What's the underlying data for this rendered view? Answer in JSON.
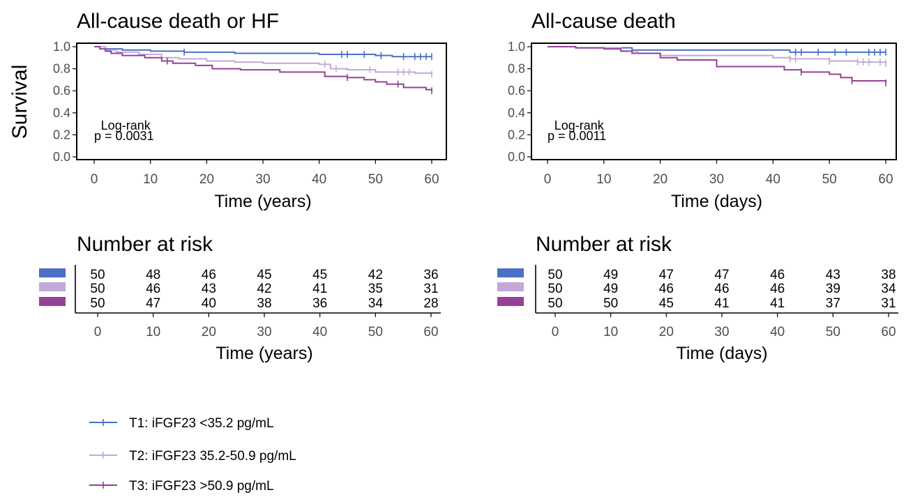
{
  "colors": {
    "t1": "#4a6fc4",
    "t2": "#c3a9d6",
    "t3": "#944197"
  },
  "shared": {
    "y_axis_label": "Survival",
    "y_ticks": [
      "0.0",
      "0.2",
      "0.4",
      "0.6",
      "0.8",
      "1.0"
    ],
    "x_ticks": [
      "0",
      "10",
      "20",
      "30",
      "40",
      "50",
      "60"
    ],
    "risk_title": "Number at risk"
  },
  "legend": {
    "items": [
      {
        "label": "T1: iFGF23 <35.2 pg/mL",
        "color": "#4a6fc4"
      },
      {
        "label": "T2: iFGF23 35.2-50.9 pg/mL",
        "color": "#c3a9d6"
      },
      {
        "label": "T3: iFGF23 >50.9 pg/mL",
        "color": "#944197"
      }
    ]
  },
  "chart_data": [
    {
      "type": "line",
      "title": "All-cause death or HF",
      "xlabel": "Time (years)",
      "ylabel": "Survival",
      "xlim": [
        0,
        60
      ],
      "ylim": [
        0,
        1
      ],
      "annotation": {
        "line1": "Log-rank",
        "line2": "p = 0.0031"
      },
      "series": [
        {
          "key": "t1",
          "x": [
            0,
            2,
            5,
            10,
            16,
            20,
            25,
            30,
            40,
            45,
            50,
            53,
            57,
            60
          ],
          "y": [
            1.0,
            0.98,
            0.97,
            0.96,
            0.95,
            0.95,
            0.94,
            0.94,
            0.93,
            0.93,
            0.92,
            0.91,
            0.91,
            0.91
          ],
          "censor_x": [
            16,
            44,
            45,
            48,
            51,
            55,
            57,
            58,
            59,
            60
          ]
        },
        {
          "key": "t2",
          "x": [
            0,
            2,
            4,
            8,
            12,
            15,
            20,
            25,
            30,
            35,
            40,
            42,
            45,
            50,
            53,
            57,
            60
          ],
          "y": [
            1.0,
            0.97,
            0.95,
            0.93,
            0.9,
            0.89,
            0.87,
            0.86,
            0.85,
            0.85,
            0.84,
            0.8,
            0.79,
            0.77,
            0.77,
            0.76,
            0.75
          ],
          "censor_x": [
            41,
            43,
            49,
            54,
            55,
            56,
            60
          ]
        },
        {
          "key": "t3",
          "x": [
            0,
            1,
            2,
            3,
            5,
            9,
            12,
            14,
            18,
            21,
            26,
            33,
            36,
            41,
            45,
            48,
            50,
            52,
            55,
            59,
            60
          ],
          "y": [
            1.0,
            0.98,
            0.96,
            0.94,
            0.92,
            0.9,
            0.87,
            0.85,
            0.83,
            0.8,
            0.79,
            0.77,
            0.77,
            0.73,
            0.72,
            0.7,
            0.68,
            0.66,
            0.63,
            0.61,
            0.6
          ],
          "censor_x": [
            13,
            45,
            54,
            60
          ]
        }
      ],
      "risk_table": {
        "times": [
          0,
          10,
          20,
          30,
          40,
          50,
          60
        ],
        "rows": [
          {
            "key": "t1",
            "values": [
              50,
              48,
              46,
              45,
              45,
              42,
              36
            ]
          },
          {
            "key": "t2",
            "values": [
              50,
              46,
              43,
              42,
              41,
              35,
              31
            ]
          },
          {
            "key": "t3",
            "values": [
              50,
              47,
              40,
              38,
              36,
              34,
              28
            ]
          }
        ],
        "xlabel": "Time (years)"
      }
    },
    {
      "type": "line",
      "title": "All-cause death",
      "xlabel": "Time (days)",
      "ylabel": "",
      "xlim": [
        0,
        60
      ],
      "ylim": [
        0,
        1
      ],
      "annotation": {
        "line1": "Log-rank",
        "line2": "p = 0.0011"
      },
      "series": [
        {
          "key": "t1",
          "x": [
            0,
            5,
            10,
            15,
            20,
            30,
            40,
            43,
            50,
            60
          ],
          "y": [
            1.0,
            0.99,
            0.99,
            0.97,
            0.97,
            0.97,
            0.97,
            0.95,
            0.95,
            0.95
          ],
          "censor_x": [
            44,
            45,
            48,
            51,
            53,
            57,
            58,
            59,
            60
          ]
        },
        {
          "key": "t2",
          "x": [
            0,
            5,
            10,
            13,
            16,
            20,
            30,
            40,
            43,
            50,
            55,
            60
          ],
          "y": [
            1.0,
            0.99,
            0.99,
            0.96,
            0.94,
            0.92,
            0.92,
            0.9,
            0.89,
            0.87,
            0.86,
            0.85
          ],
          "censor_x": [
            43,
            44,
            50,
            55,
            56,
            57,
            59,
            60
          ]
        },
        {
          "key": "t3",
          "x": [
            0,
            5,
            10,
            13,
            15,
            20,
            23,
            30,
            40,
            42,
            45,
            50,
            52,
            54,
            58,
            60
          ],
          "y": [
            1.0,
            0.99,
            0.98,
            0.96,
            0.94,
            0.9,
            0.88,
            0.82,
            0.82,
            0.79,
            0.77,
            0.75,
            0.72,
            0.69,
            0.69,
            0.67
          ],
          "censor_x": [
            45,
            54,
            60
          ]
        }
      ],
      "risk_table": {
        "times": [
          0,
          10,
          20,
          30,
          40,
          50,
          60
        ],
        "rows": [
          {
            "key": "t1",
            "values": [
              50,
              49,
              47,
              47,
              46,
              43,
              38
            ]
          },
          {
            "key": "t2",
            "values": [
              50,
              49,
              46,
              46,
              46,
              39,
              34
            ]
          },
          {
            "key": "t3",
            "values": [
              50,
              50,
              45,
              41,
              41,
              37,
              31
            ]
          }
        ],
        "xlabel": "Time (days)"
      }
    }
  ]
}
